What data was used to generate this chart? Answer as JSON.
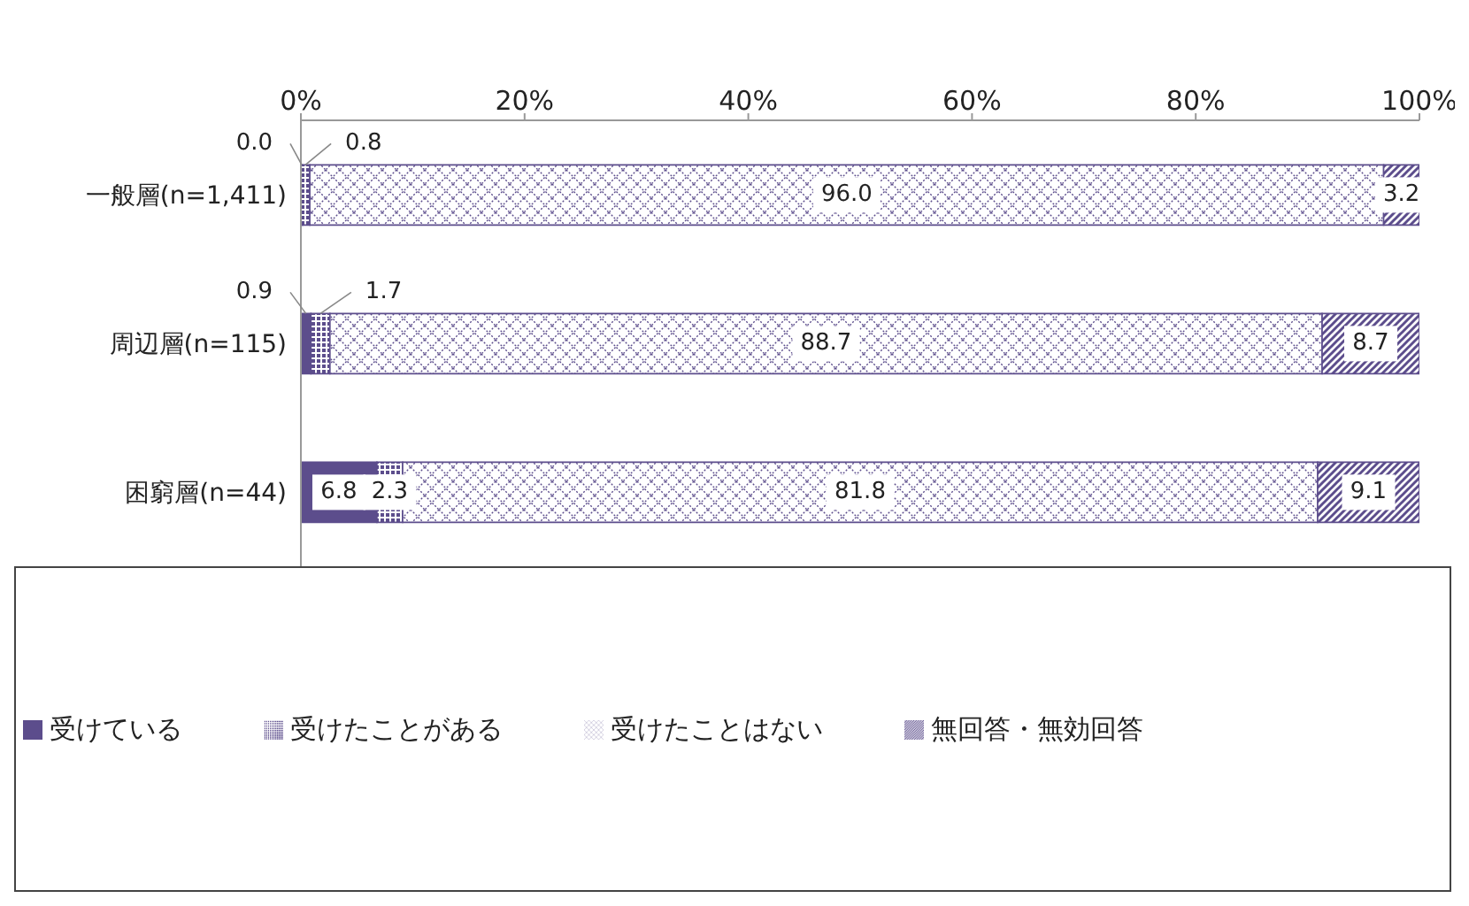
{
  "chart_data": {
    "type": "bar",
    "orientation": "horizontal",
    "stacked": true,
    "categories": [
      "一般層(n=1,411)",
      "周辺層(n=115)",
      "困窮層(n=44)"
    ],
    "series": [
      {
        "name": "受けている",
        "color": "#5c4d8c",
        "values": [
          0.0,
          0.9,
          6.8
        ],
        "value_labels": [
          "0.0",
          "0.9",
          "6.8"
        ]
      },
      {
        "name": "受けたことがある",
        "color": "#5c4d8c",
        "values": [
          0.8,
          1.7,
          2.3
        ],
        "value_labels": [
          "0.8",
          "1.7",
          "2.3"
        ]
      },
      {
        "name": "受けたことはない",
        "color": "#5c4d8c",
        "values": [
          96.0,
          88.7,
          81.8
        ],
        "value_labels": [
          "96.0",
          "88.7",
          "81.8"
        ]
      },
      {
        "name": "無回答・無効回答",
        "color": "#5c4d8c",
        "values": [
          3.2,
          8.7,
          9.1
        ],
        "value_labels": [
          "3.2",
          "8.7",
          "9.1"
        ]
      }
    ],
    "xlim": [
      0,
      100
    ],
    "xticks": [
      {
        "value": 0,
        "label": "0%"
      },
      {
        "value": 20,
        "label": "20%"
      },
      {
        "value": 40,
        "label": "40%"
      },
      {
        "value": 60,
        "label": "60%"
      },
      {
        "value": 80,
        "label": "80%"
      },
      {
        "value": 100,
        "label": "100%"
      }
    ],
    "grid": false,
    "legend": "bottom"
  }
}
